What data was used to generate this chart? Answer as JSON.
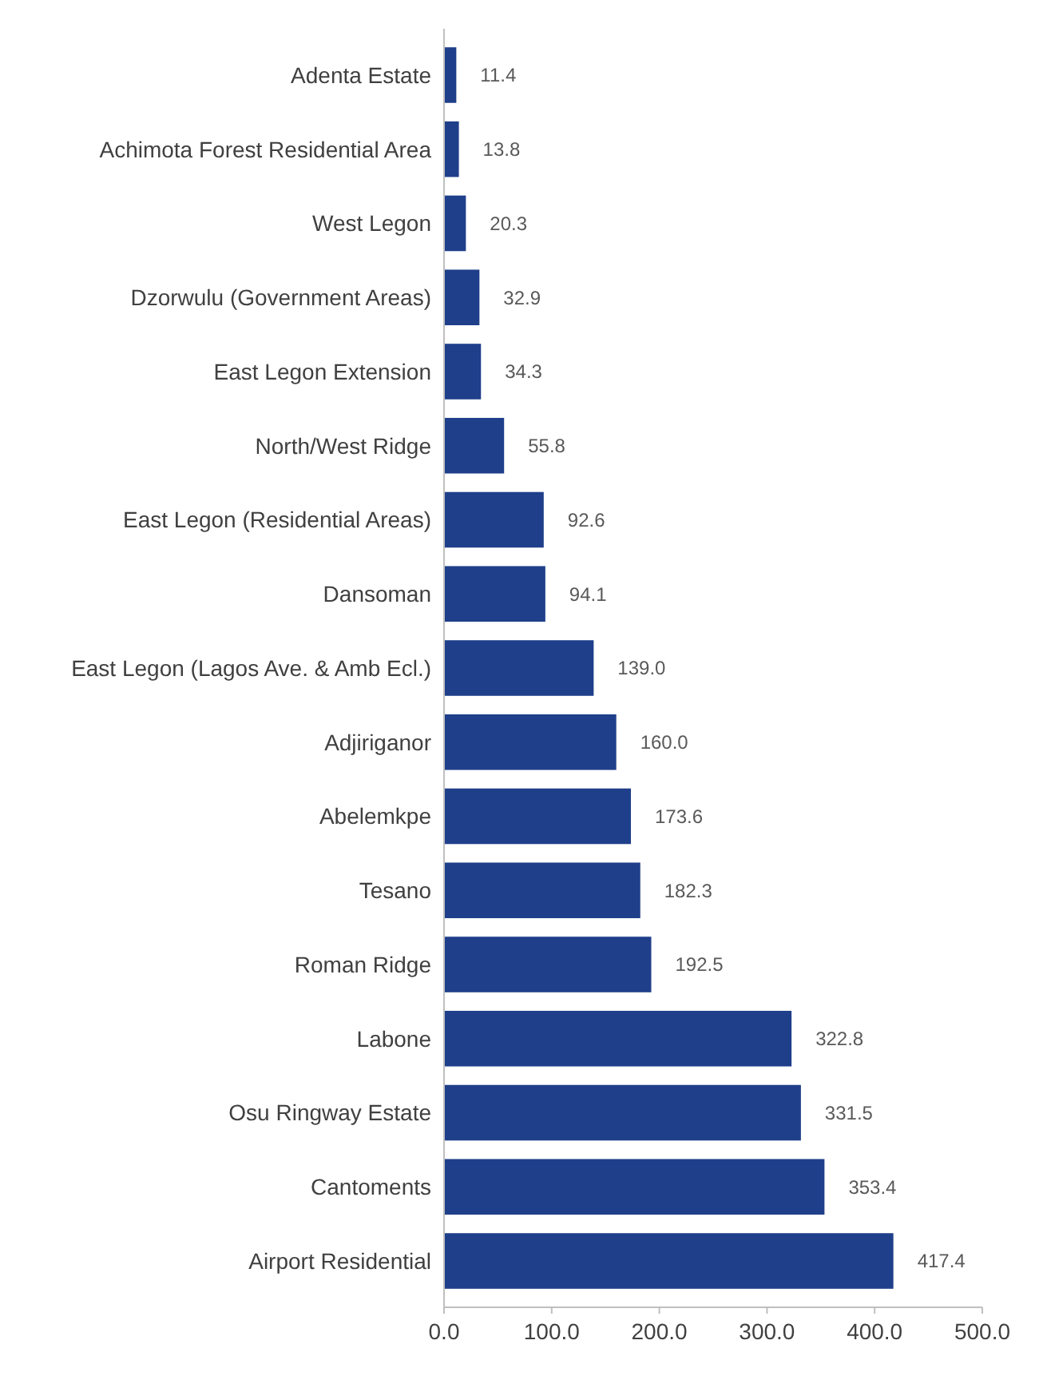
{
  "chart_data": {
    "type": "bar",
    "orientation": "horizontal",
    "categories": [
      "Adenta Estate",
      "Achimota Forest Residential Area",
      "West Legon",
      "Dzorwulu (Government Areas)",
      "East Legon Extension",
      "North/West Ridge",
      "East Legon (Residential Areas)",
      "Dansoman",
      "East Legon (Lagos Ave. & Amb Ecl.)",
      "Adjiriganor",
      "Abelemkpe",
      "Tesano",
      "Roman Ridge",
      "Labone",
      "Osu Ringway Estate",
      "Cantoments",
      "Airport Residential"
    ],
    "values": [
      11.4,
      13.8,
      20.3,
      32.9,
      34.3,
      55.8,
      92.6,
      94.1,
      139.0,
      160.0,
      173.6,
      182.3,
      192.5,
      322.8,
      331.5,
      353.4,
      417.4
    ],
    "value_labels": [
      "11.4",
      "13.8",
      "20.3",
      "32.9",
      "34.3",
      "55.8",
      "92.6",
      "94.1",
      "139.0",
      "160.0",
      "173.6",
      "182.3",
      "192.5",
      "322.8",
      "331.5",
      "353.4",
      "417.4"
    ],
    "color": "#1f3f8a",
    "xlim": [
      0,
      500
    ],
    "xticks": [
      {
        "value": 0,
        "label": "0.0"
      },
      {
        "value": 100,
        "label": "100.0"
      },
      {
        "value": 200,
        "label": "200.0"
      },
      {
        "value": 300,
        "label": "300.0"
      },
      {
        "value": 400,
        "label": "400.0"
      },
      {
        "value": 500,
        "label": "500.0"
      }
    ],
    "grid": false
  }
}
